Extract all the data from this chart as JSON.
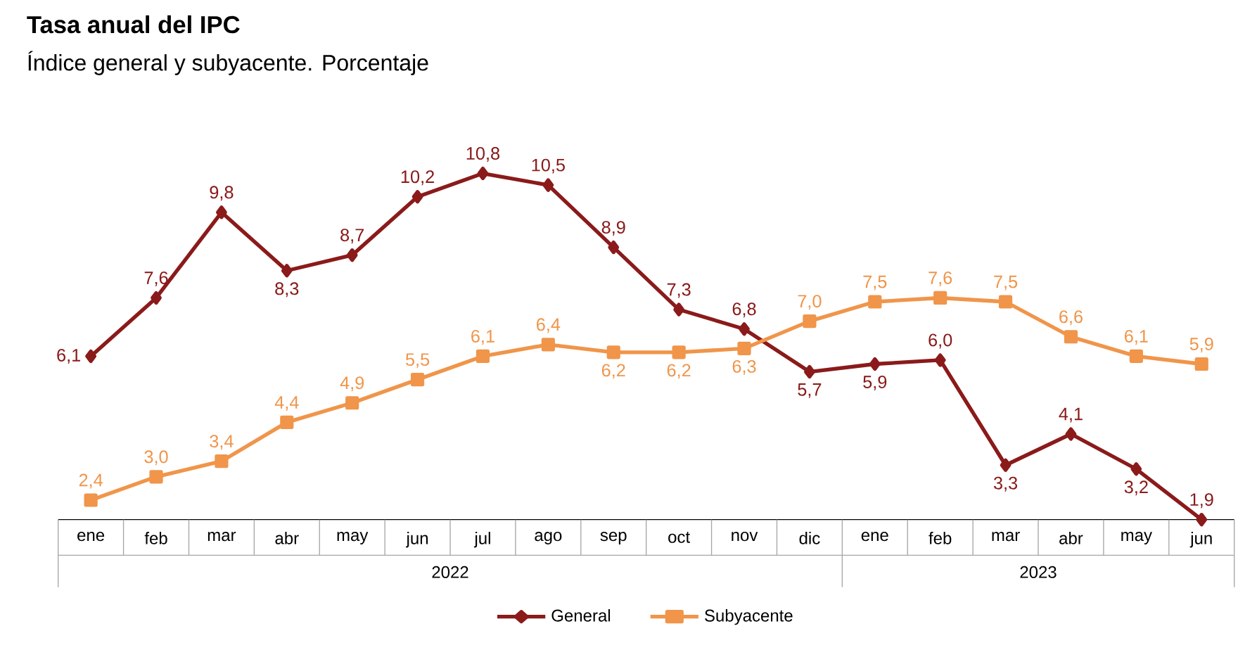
{
  "chart_data": {
    "type": "line",
    "title": "Tasa anual del IPC",
    "subtitle": "Índice general y subyacente. Porcentaje",
    "categories": [
      "ene",
      "feb",
      "mar",
      "abr",
      "may",
      "jun",
      "jul",
      "ago",
      "sep",
      "oct",
      "nov",
      "dic",
      "ene",
      "feb",
      "mar",
      "abr",
      "may",
      "jun"
    ],
    "annotations": [
      "2022",
      "2023"
    ],
    "series": [
      {
        "name": "General",
        "color": "#8b1a1a",
        "marker": "diamond",
        "values": [
          6.1,
          7.6,
          9.8,
          8.3,
          8.7,
          10.2,
          10.8,
          10.5,
          8.9,
          7.3,
          6.8,
          5.7,
          5.9,
          6.0,
          3.3,
          4.1,
          3.2,
          1.9
        ],
        "value_labels": [
          "6,1",
          "7,6",
          "9,8",
          "8,3",
          "8,7",
          "10,2",
          "10,8",
          "10,5",
          "8,9",
          "7,3",
          "6,8",
          "5,7",
          "5,9",
          "6,0",
          "3,3",
          "4,1",
          "3,2",
          "1,9"
        ]
      },
      {
        "name": "Subyacente",
        "color": "#f0954a",
        "marker": "square",
        "values": [
          2.4,
          3.0,
          3.4,
          4.4,
          4.9,
          5.5,
          6.1,
          6.4,
          6.2,
          6.2,
          6.3,
          7.0,
          7.5,
          7.6,
          7.5,
          6.6,
          6.1,
          5.9
        ],
        "value_labels": [
          "2,4",
          "3,0",
          "3,4",
          "4,4",
          "4,9",
          "5,5",
          "6,1",
          "6,4",
          "6,2",
          "6,2",
          "6,3",
          "7,0",
          "7,5",
          "7,6",
          "7,5",
          "6,6",
          "6,1",
          "5,9"
        ]
      }
    ],
    "legend": "bottom",
    "tick_labels": "x",
    "grid": false
  }
}
